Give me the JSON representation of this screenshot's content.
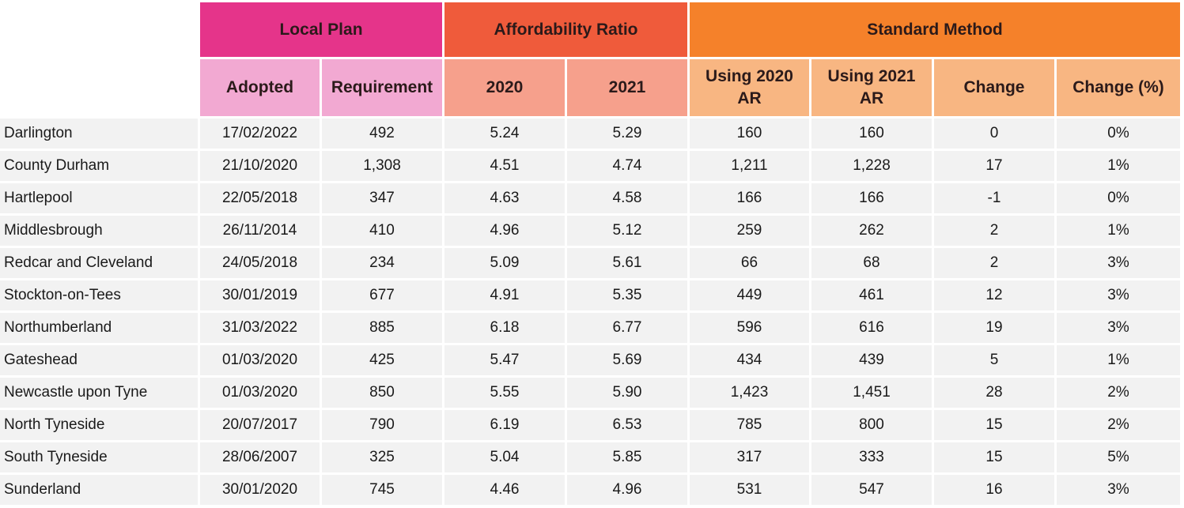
{
  "groups": {
    "local_plan": "Local Plan",
    "affordability_ratio": "Affordability Ratio",
    "standard_method": "Standard Method"
  },
  "subheaders": {
    "adopted": "Adopted",
    "requirement": "Requirement",
    "ar_2020": "2020",
    "ar_2021": "2021",
    "using_2020_line1": "Using 2020",
    "using_2020_line2": "AR",
    "using_2021_line1": "Using 2021",
    "using_2021_line2": "AR",
    "change": "Change",
    "change_pct": "Change (%)"
  },
  "rows": [
    {
      "name": "Darlington",
      "adopted": "17/02/2022",
      "requirement": "492",
      "ar2020": "5.24",
      "ar2021": "5.29",
      "using2020": "160",
      "using2021": "160",
      "change": "0",
      "change_pct": "0%"
    },
    {
      "name": "County Durham",
      "adopted": "21/10/2020",
      "requirement": "1,308",
      "ar2020": "4.51",
      "ar2021": "4.74",
      "using2020": "1,211",
      "using2021": "1,228",
      "change": "17",
      "change_pct": "1%"
    },
    {
      "name": "Hartlepool",
      "adopted": "22/05/2018",
      "requirement": "347",
      "ar2020": "4.63",
      "ar2021": "4.58",
      "using2020": "166",
      "using2021": "166",
      "change": "-1",
      "change_pct": "0%"
    },
    {
      "name": "Middlesbrough",
      "adopted": "26/11/2014",
      "requirement": "410",
      "ar2020": "4.96",
      "ar2021": "5.12",
      "using2020": "259",
      "using2021": "262",
      "change": "2",
      "change_pct": "1%"
    },
    {
      "name": "Redcar and Cleveland",
      "adopted": "24/05/2018",
      "requirement": "234",
      "ar2020": "5.09",
      "ar2021": "5.61",
      "using2020": "66",
      "using2021": "68",
      "change": "2",
      "change_pct": "3%"
    },
    {
      "name": "Stockton-on-Tees",
      "adopted": "30/01/2019",
      "requirement": "677",
      "ar2020": "4.91",
      "ar2021": "5.35",
      "using2020": "449",
      "using2021": "461",
      "change": "12",
      "change_pct": "3%"
    },
    {
      "name": "Northumberland",
      "adopted": "31/03/2022",
      "requirement": "885",
      "ar2020": "6.18",
      "ar2021": "6.77",
      "using2020": "596",
      "using2021": "616",
      "change": "19",
      "change_pct": "3%"
    },
    {
      "name": "Gateshead",
      "adopted": "01/03/2020",
      "requirement": "425",
      "ar2020": "5.47",
      "ar2021": "5.69",
      "using2020": "434",
      "using2021": "439",
      "change": "5",
      "change_pct": "1%"
    },
    {
      "name": "Newcastle upon Tyne",
      "adopted": "01/03/2020",
      "requirement": "850",
      "ar2020": "5.55",
      "ar2021": "5.90",
      "using2020": "1,423",
      "using2021": "1,451",
      "change": "28",
      "change_pct": "2%"
    },
    {
      "name": "North Tyneside",
      "adopted": "20/07/2017",
      "requirement": "790",
      "ar2020": "6.19",
      "ar2021": "6.53",
      "using2020": "785",
      "using2021": "800",
      "change": "15",
      "change_pct": "2%"
    },
    {
      "name": "South Tyneside",
      "adopted": "28/06/2007",
      "requirement": "325",
      "ar2020": "5.04",
      "ar2021": "5.85",
      "using2020": "317",
      "using2021": "333",
      "change": "15",
      "change_pct": "5%"
    },
    {
      "name": "Sunderland",
      "adopted": "30/01/2020",
      "requirement": "745",
      "ar2020": "4.46",
      "ar2021": "4.96",
      "using2020": "531",
      "using2021": "547",
      "change": "16",
      "change_pct": "3%"
    }
  ]
}
